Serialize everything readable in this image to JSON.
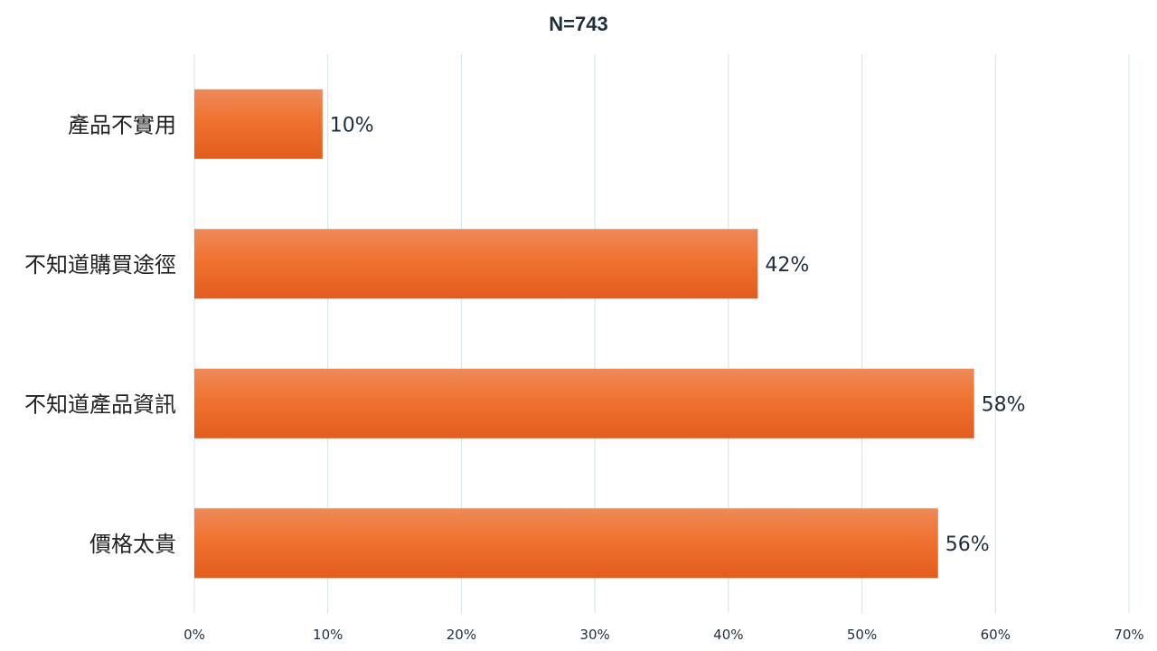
{
  "colors": {
    "bar_top": "#ee8a5a",
    "bar_mid": "#f07230",
    "bar_bottom": "#e25c1e",
    "grid": "#d3e3e6",
    "text_dark": "#1f2d3d"
  },
  "chart_data": {
    "type": "bar",
    "orientation": "horizontal",
    "title": "N=743",
    "categories": [
      "產品不實用",
      "不知道購買途徑",
      "不知道產品資訊",
      "價格太貴"
    ],
    "values": [
      9.6,
      42.2,
      58.4,
      55.7
    ],
    "value_labels": [
      "10%",
      "42%",
      "58%",
      "56%"
    ],
    "xlim": [
      0,
      70
    ],
    "xticks": [
      0,
      10,
      20,
      30,
      40,
      50,
      60,
      70
    ],
    "xtick_labels": [
      "0%",
      "10%",
      "20%",
      "30%",
      "40%",
      "50%",
      "60%",
      "70%"
    ],
    "xlabel": "",
    "ylabel": "",
    "grid": "vertical",
    "legend": "none"
  }
}
